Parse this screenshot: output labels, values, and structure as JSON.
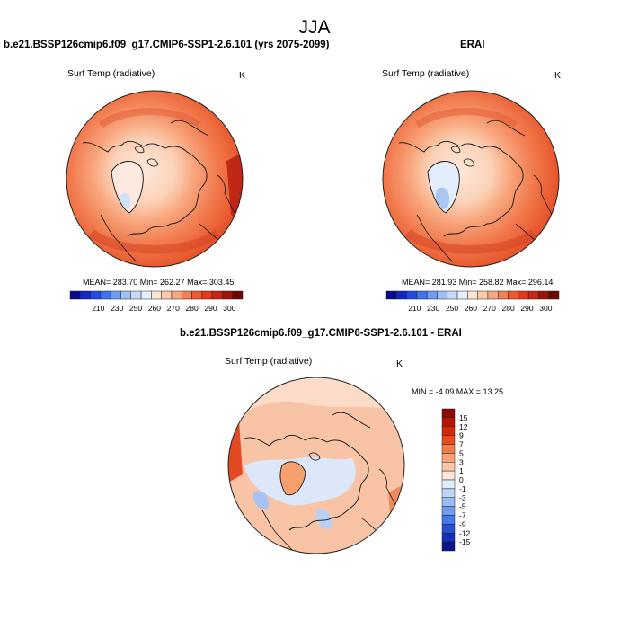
{
  "season": "JJA",
  "panels": [
    {
      "title": "b.e21.BSSP126cmip6.f09_g17.CMIP6-SSP1-2.6.101 (yrs 2075-2099)",
      "variable": "Surf Temp (radiative)",
      "units": "K",
      "stats": "MEAN= 283.70   Min= 262.27   Max= 303.45"
    },
    {
      "title": "ERAI",
      "variable": "Surf Temp (radiative)",
      "units": "K",
      "stats": "MEAN= 281.93   Min= 258.82   Max= 296.14"
    },
    {
      "title": "b.e21.BSSP126cmip6.f09_g17.CMIP6-SSP1-2.6.101 - ERAI",
      "variable": "Surf Temp (radiative)",
      "units": "K",
      "stats": "MIN = -4.09 MAX = 13.25"
    }
  ],
  "chart_data": [
    {
      "type": "heatmap",
      "projection": "north-polar-stereographic",
      "field": "surface temperature (model)",
      "mean": 283.7,
      "min": 262.27,
      "max": 303.45,
      "colorbar": {
        "orientation": "horizontal",
        "tick_labels": [
          "210",
          "230",
          "250",
          "260",
          "270",
          "280",
          "290",
          "300"
        ],
        "colors": [
          "#0a0a8c",
          "#1525c8",
          "#1f4ae6",
          "#3d74f0",
          "#6d9cf4",
          "#9cc0f7",
          "#c5dbf9",
          "#e6effb",
          "#fde3d2",
          "#fbc9aa",
          "#f8a67d",
          "#f47f53",
          "#ee5a30",
          "#e23a18",
          "#c82412",
          "#9e1408",
          "#6e0700"
        ]
      }
    },
    {
      "type": "heatmap",
      "projection": "north-polar-stereographic",
      "field": "surface temperature (ERAI)",
      "mean": 281.93,
      "min": 258.82,
      "max": 296.14,
      "colorbar": {
        "orientation": "horizontal",
        "tick_labels": [
          "210",
          "230",
          "250",
          "260",
          "270",
          "280",
          "290",
          "300"
        ],
        "colors": [
          "#0a0a8c",
          "#1525c8",
          "#1f4ae6",
          "#3d74f0",
          "#6d9cf4",
          "#9cc0f7",
          "#c5dbf9",
          "#e6effb",
          "#fde3d2",
          "#fbc9aa",
          "#f8a67d",
          "#f47f53",
          "#ee5a30",
          "#e23a18",
          "#c82412",
          "#9e1408",
          "#6e0700"
        ]
      }
    },
    {
      "type": "heatmap",
      "projection": "north-polar-stereographic",
      "field": "difference (model - ERAI)",
      "min": -4.09,
      "max": 13.25,
      "colorbar": {
        "orientation": "vertical",
        "tick_labels": [
          "15",
          "12",
          "9",
          "7",
          "5",
          "3",
          "1",
          "0",
          "-1",
          "-3",
          "-5",
          "-7",
          "-9",
          "-12",
          "-15"
        ],
        "colors": [
          "#8c0a00",
          "#b81504",
          "#d8280a",
          "#e94b1c",
          "#f47a4a",
          "#f8a27a",
          "#fbc6a8",
          "#fde6d8",
          "#e0ecfb",
          "#bdd5f7",
          "#98bcf3",
          "#6f9cf0",
          "#4677ea",
          "#2550d6",
          "#1230b2",
          "#0a168a"
        ]
      }
    }
  ]
}
